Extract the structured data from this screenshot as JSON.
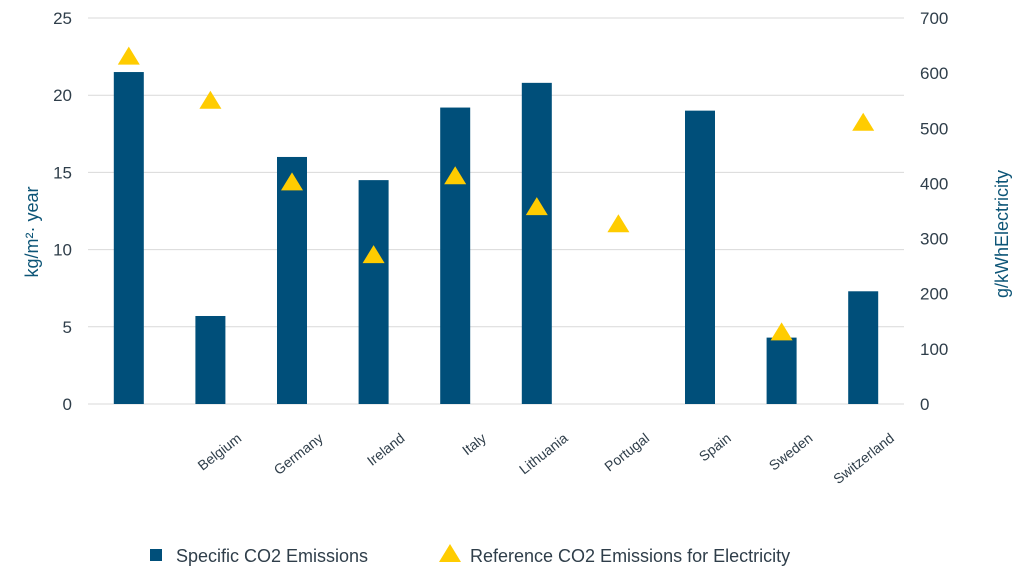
{
  "chart_data": {
    "type": "bar",
    "title": "",
    "categories": [
      "",
      "Belgium",
      "Germany",
      "Ireland",
      "Italy",
      "Lithuania",
      "Portugal",
      "Spain",
      "Sweden",
      "Switzerland"
    ],
    "series": [
      {
        "name": "Specific CO2 Emissions",
        "type": "bar",
        "axis": "left",
        "values": [
          21.5,
          5.7,
          16.0,
          14.5,
          19.2,
          20.8,
          0,
          19.0,
          4.3,
          7.3
        ]
      },
      {
        "name": "Reference CO2 Emissions for Electricity",
        "type": "scatter",
        "marker": "triangle",
        "axis": "right",
        "values": [
          630,
          550,
          402,
          270,
          413,
          357,
          326,
          0,
          130,
          510
        ]
      }
    ],
    "series_values_aligned_to_slots": true,
    "y_left": {
      "label": "kg/m²·  year",
      "min": 0,
      "max": 25,
      "ticks": [
        0,
        5,
        10,
        15,
        20,
        25
      ]
    },
    "y_right": {
      "label": "g/kWhElectricity",
      "min": 0,
      "max": 700,
      "ticks": [
        0,
        100,
        200,
        300,
        400,
        500,
        600,
        700
      ]
    },
    "grid": true,
    "legend_position": "bottom",
    "colors": {
      "bar": "#004f7a",
      "marker": "#ffcc00",
      "axis_title": "#0d5577"
    }
  }
}
